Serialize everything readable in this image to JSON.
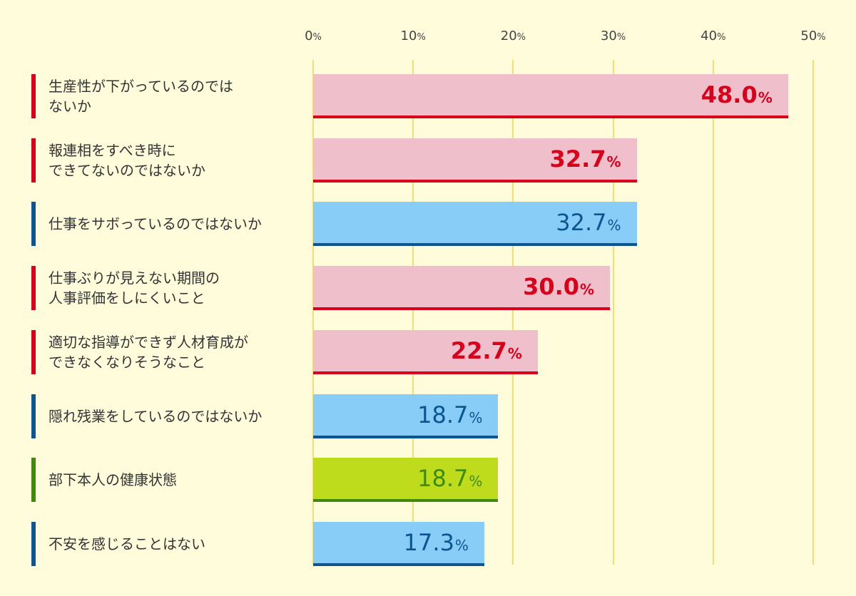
{
  "chart_data": {
    "type": "bar",
    "orientation": "horizontal",
    "xlim": [
      0,
      50
    ],
    "ticks": [
      {
        "num": "0",
        "unit": "%"
      },
      {
        "num": "10",
        "unit": "%"
      },
      {
        "num": "20",
        "unit": "%"
      },
      {
        "num": "30",
        "unit": "%"
      },
      {
        "num": "40",
        "unit": "%"
      },
      {
        "num": "50",
        "unit": "%"
      }
    ],
    "tick_values": [
      0,
      10,
      20,
      30,
      40,
      50
    ],
    "grid": true,
    "categories": [
      "生産性が下がっているのでは\nないか",
      "報連相をすべき時に\nできてないのではないか",
      "仕事をサボっているのではないか",
      "仕事ぶりが見えない期間の\n人事評価をしにくいこと",
      "適切な指導ができず人材育成が\nできなくなりそうなこと",
      "隠れ残業をしているのではないか",
      "部下本人の健康状態",
      "不安を感じることはない"
    ],
    "values": [
      48.0,
      32.7,
      32.7,
      30.0,
      22.7,
      18.7,
      18.7,
      17.3
    ],
    "value_labels": [
      "48.0",
      "32.7",
      "32.7",
      "30.0",
      "22.7",
      "18.7",
      "18.7",
      "17.3"
    ],
    "unit": "%",
    "groups": [
      "red",
      "red",
      "blue",
      "red",
      "red",
      "blue",
      "green",
      "blue"
    ]
  },
  "colors": {
    "red": {
      "fill": "#efbfcb",
      "line": "#d9001b",
      "text": "#d9001b",
      "bold": true
    },
    "blue": {
      "fill": "#88cdf8",
      "line": "#0b5591",
      "text": "#0b5591",
      "bold": false
    },
    "green": {
      "fill": "#bedc1b",
      "line": "#3f8a0a",
      "text": "#3f8a0a",
      "bold": false
    },
    "grid": "#f7dc74",
    "background": "#fffcdc"
  }
}
